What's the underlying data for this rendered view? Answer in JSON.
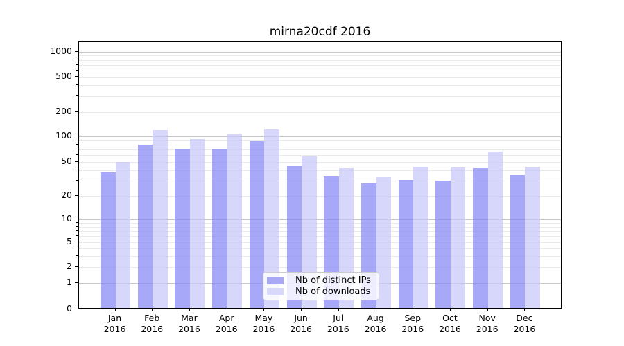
{
  "title": "mirna20cdf 2016",
  "chart_data": {
    "type": "bar",
    "title": "mirna20cdf 2016",
    "yscale": "symlog",
    "grid": true,
    "categories": [
      "Jan",
      "Feb",
      "Mar",
      "Apr",
      "May",
      "Jun",
      "Jul",
      "Aug",
      "Sep",
      "Oct",
      "Nov",
      "Dec"
    ],
    "x_year_label": "2016",
    "series": [
      {
        "name": "Nb of distinct IPs",
        "color": "rgba(134,134,245,0.72)",
        "legend_color": "#a8a8f5",
        "values": [
          38,
          80,
          71,
          70,
          87,
          45,
          34,
          28,
          31,
          30,
          42,
          35
        ]
      },
      {
        "name": "Nb of downloads",
        "color": "rgba(199,199,249,0.72)",
        "legend_color": "#d8d8fa",
        "values": [
          50,
          120,
          93,
          106,
          123,
          58,
          42,
          33,
          44,
          43,
          66,
          43
        ]
      }
    ],
    "y_ticks": [
      0,
      1,
      2,
      5,
      10,
      20,
      50,
      100,
      200,
      500,
      1000
    ],
    "ylim": [
      0,
      1400
    ],
    "legend_position": "lower-center"
  },
  "legend": {
    "items": [
      "Nb of distinct IPs",
      "Nb of downloads"
    ]
  },
  "colors": {
    "background": "#ffffff",
    "bar_distinct_ips": "#a8a8f5",
    "bar_downloads": "#d8d8fa",
    "grid_major": "#c6c6c6",
    "grid_minor": "#eaeaea",
    "spine": "#000000",
    "text": "#000000",
    "legend_border": "#cccccc",
    "legend_bg": "rgba(255,255,255,0.8)"
  }
}
